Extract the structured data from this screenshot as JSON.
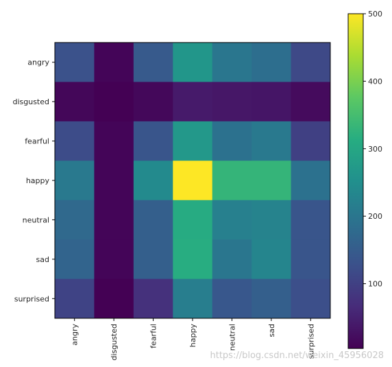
{
  "chart_data": {
    "type": "heatmap",
    "title": "",
    "xlabel": "",
    "ylabel": "",
    "x_categories": [
      "angry",
      "disgusted",
      "fearful",
      "happy",
      "neutral",
      "sad",
      "surprised"
    ],
    "y_categories": [
      "angry",
      "disgusted",
      "fearful",
      "happy",
      "neutral",
      "sad",
      "surprised"
    ],
    "values": [
      [
        130,
        10,
        145,
        265,
        200,
        185,
        115
      ],
      [
        12,
        4,
        14,
        40,
        35,
        33,
        18
      ],
      [
        120,
        10,
        135,
        270,
        190,
        205,
        100
      ],
      [
        205,
        10,
        240,
        500,
        330,
        330,
        190
      ],
      [
        175,
        10,
        155,
        310,
        220,
        225,
        135
      ],
      [
        165,
        10,
        155,
        315,
        200,
        230,
        135
      ],
      [
        105,
        4,
        75,
        215,
        140,
        155,
        125
      ]
    ],
    "colorbar": {
      "min": 4,
      "max": 500,
      "ticks": [
        100,
        200,
        300,
        400,
        500
      ],
      "colormap": "viridis"
    },
    "grid": false
  },
  "watermark": "https://blog.csdn.net/weixin_45956028"
}
